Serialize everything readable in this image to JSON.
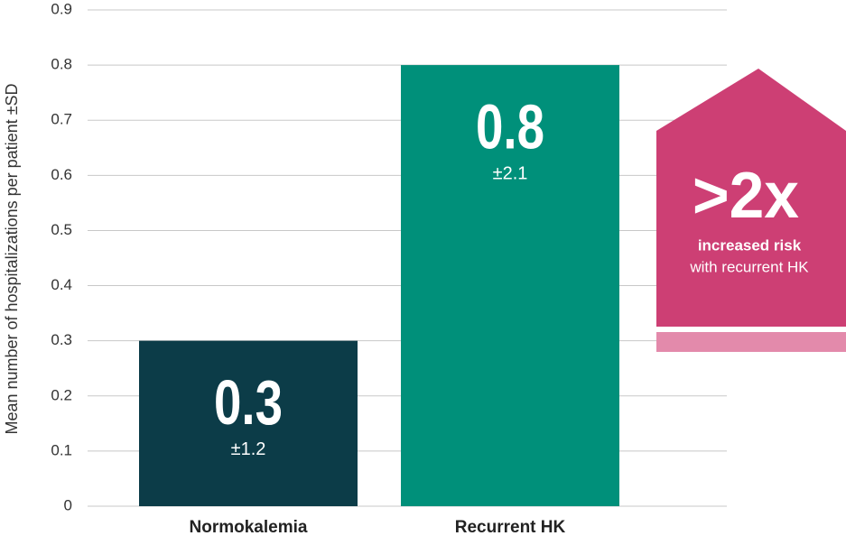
{
  "chart_data": {
    "type": "bar",
    "y_label": "Mean number of hospitalizations per patient ±SD",
    "categories": [
      "Normokalemia",
      "Recurrent HK"
    ],
    "values": [
      0.3,
      0.8
    ],
    "value_labels": [
      "0.3",
      "0.8"
    ],
    "errors": [
      1.2,
      2.1
    ],
    "error_labels": [
      "±1.2",
      "±2.1"
    ],
    "colors": [
      "#0c3c48",
      "#00907a"
    ],
    "ylim": [
      0,
      0.9
    ],
    "yticks": [
      0,
      0.1,
      0.2,
      0.3,
      0.4,
      0.5,
      0.6,
      0.7,
      0.8,
      0.9
    ],
    "grid": true,
    "annotation": {
      "headline": ">2x",
      "line1": "increased risk",
      "line2": "with recurrent HK"
    }
  }
}
